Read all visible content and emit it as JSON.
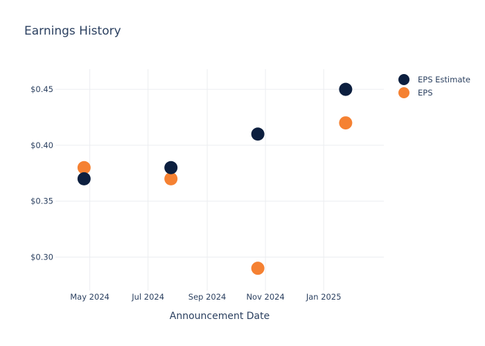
{
  "chart_data": {
    "type": "scatter",
    "title": "Earnings History",
    "xlabel": "Announcement Date",
    "ylabel": "",
    "x_ticks": [
      {
        "date": "2024-05-01",
        "label": "May 2024"
      },
      {
        "date": "2024-07-01",
        "label": "Jul 2024"
      },
      {
        "date": "2024-09-01",
        "label": "Sep 2024"
      },
      {
        "date": "2024-11-01",
        "label": "Nov 2024"
      },
      {
        "date": "2025-01-01",
        "label": "Jan 2025"
      }
    ],
    "y_ticks": [
      {
        "value": 0.3,
        "label": "$0.30"
      },
      {
        "value": 0.35,
        "label": "$0.35"
      },
      {
        "value": 0.4,
        "label": "$0.40"
      },
      {
        "value": 0.45,
        "label": "$0.45"
      }
    ],
    "xlim": [
      "2024-03-26",
      "2025-03-05"
    ],
    "ylim": [
      0.27,
      0.468
    ],
    "grid": true,
    "legend_position": "top-right",
    "series": [
      {
        "name": "EPS Estimate",
        "color": "#0c1f3f",
        "points": [
          {
            "x": "2024-04-25",
            "y": 0.37
          },
          {
            "x": "2024-07-25",
            "y": 0.38
          },
          {
            "x": "2024-10-24",
            "y": 0.41
          },
          {
            "x": "2025-01-24",
            "y": 0.45
          }
        ]
      },
      {
        "name": "EPS",
        "color": "#f58132",
        "points": [
          {
            "x": "2024-04-25",
            "y": 0.38
          },
          {
            "x": "2024-07-25",
            "y": 0.37
          },
          {
            "x": "2024-10-24",
            "y": 0.29
          },
          {
            "x": "2025-01-24",
            "y": 0.42
          }
        ]
      }
    ]
  }
}
